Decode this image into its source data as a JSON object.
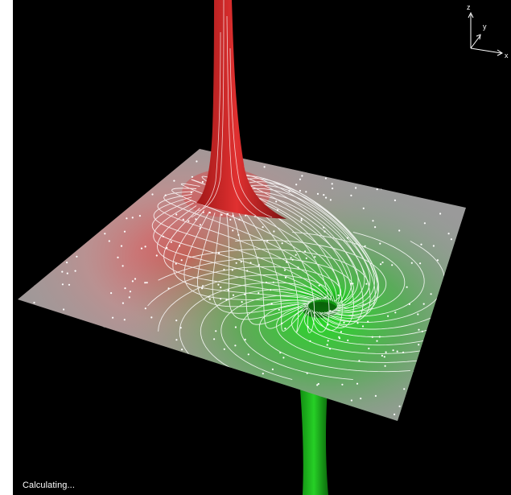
{
  "status_text": "Calculating...",
  "axes": {
    "z_label": "z",
    "y_label": "y",
    "x_label": "x"
  },
  "colors": {
    "background": "#000000",
    "plane": "#9a9a9a",
    "source_peak": "#d42a2a",
    "sink_well": "#1fd21f",
    "field_lines": "#ffffff"
  },
  "icons": {
    "axis_triad": "axis-triad-icon"
  }
}
